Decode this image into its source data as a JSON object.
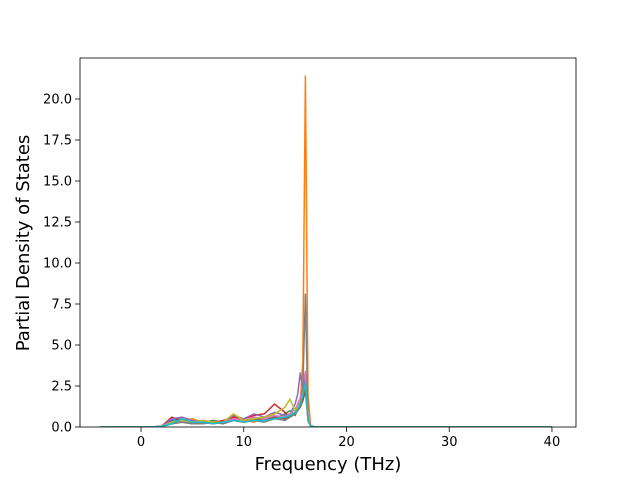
{
  "chart_data": {
    "type": "line",
    "xlabel": "Frequency (THz)",
    "ylabel": "Partial Density of States",
    "x": [
      -4,
      0,
      1,
      2,
      3,
      4,
      5,
      6,
      7,
      8,
      9,
      10,
      11,
      12,
      13,
      14,
      14.5,
      15,
      15.25,
      15.5,
      15.75,
      16,
      16.25,
      16.5,
      17,
      20,
      40
    ],
    "series": [
      {
        "color": "#1f77b4",
        "values": [
          0,
          0,
          0,
          0.05,
          0.4,
          0.5,
          0.3,
          0.2,
          0.3,
          0.2,
          0.4,
          0.3,
          0.5,
          0.4,
          0.6,
          0.5,
          0.7,
          0.9,
          1.2,
          1.6,
          2.0,
          2.4,
          0.6,
          0.05,
          0,
          0,
          0
        ]
      },
      {
        "color": "#ff7f0e",
        "values": [
          0,
          0,
          0,
          0.05,
          0.3,
          0.4,
          0.5,
          0.3,
          0.3,
          0.2,
          0.5,
          0.4,
          0.3,
          0.5,
          0.7,
          0.5,
          0.6,
          0.8,
          1.0,
          1.5,
          4.0,
          21.4,
          2.0,
          0.1,
          0,
          0,
          0
        ]
      },
      {
        "color": "#2ca02c",
        "values": [
          0,
          0,
          0,
          0.03,
          0.3,
          0.3,
          0.2,
          0.3,
          0.4,
          0.3,
          0.5,
          0.3,
          0.4,
          0.6,
          0.5,
          0.8,
          1.0,
          0.7,
          1.1,
          1.3,
          1.8,
          2.5,
          0.5,
          0.05,
          0,
          0,
          0
        ]
      },
      {
        "color": "#d62728",
        "values": [
          0,
          0,
          0,
          0.05,
          0.6,
          0.4,
          0.3,
          0.4,
          0.3,
          0.4,
          0.6,
          0.5,
          0.7,
          0.8,
          1.4,
          0.9,
          0.6,
          0.9,
          1.2,
          1.4,
          1.9,
          2.8,
          0.7,
          0.05,
          0,
          0,
          0
        ]
      },
      {
        "color": "#9467bd",
        "values": [
          0,
          0,
          0,
          0.04,
          0.5,
          0.6,
          0.4,
          0.3,
          0.2,
          0.3,
          0.7,
          0.5,
          0.8,
          0.6,
          0.9,
          0.7,
          0.8,
          1.4,
          2.0,
          3.3,
          2.2,
          3.0,
          0.8,
          0.05,
          0,
          0,
          0
        ]
      },
      {
        "color": "#8c564b",
        "values": [
          0,
          0,
          0,
          0.03,
          0.2,
          0.3,
          0.2,
          0.3,
          0.2,
          0.3,
          0.4,
          0.3,
          0.5,
          0.4,
          0.6,
          0.5,
          0.6,
          0.8,
          1.0,
          1.2,
          1.6,
          2.2,
          0.4,
          0.05,
          0,
          0,
          0
        ]
      },
      {
        "color": "#e377c2",
        "values": [
          0,
          0,
          0,
          0.03,
          0.3,
          0.4,
          0.3,
          0.4,
          0.3,
          0.3,
          0.5,
          0.4,
          0.6,
          0.5,
          0.7,
          0.6,
          0.8,
          1.1,
          1.4,
          1.8,
          2.6,
          3.4,
          0.9,
          0.05,
          0,
          0,
          0
        ]
      },
      {
        "color": "#7f7f7f",
        "values": [
          0,
          0,
          0,
          0.02,
          0.2,
          0.3,
          0.2,
          0.2,
          0.3,
          0.2,
          0.4,
          0.3,
          0.4,
          0.3,
          0.5,
          0.4,
          0.6,
          0.8,
          1.0,
          1.3,
          2.4,
          8.1,
          0.6,
          0.05,
          0,
          0,
          0
        ]
      },
      {
        "color": "#bcbd22",
        "values": [
          0,
          0,
          0,
          0.03,
          0.3,
          0.4,
          0.3,
          0.4,
          0.3,
          0.3,
          0.8,
          0.4,
          0.5,
          0.6,
          0.8,
          1.2,
          1.7,
          1.0,
          1.2,
          1.5,
          2.0,
          2.6,
          0.6,
          0.05,
          0,
          0,
          0
        ]
      },
      {
        "color": "#17becf",
        "values": [
          0,
          0,
          0,
          0.03,
          0.2,
          0.5,
          0.3,
          0.3,
          0.2,
          0.3,
          0.4,
          0.3,
          0.4,
          0.4,
          0.5,
          0.6,
          0.7,
          0.9,
          1.1,
          1.4,
          1.9,
          2.7,
          0.5,
          0.05,
          0,
          0,
          0
        ]
      }
    ],
    "xlim": [
      -5.94,
      42.34
    ],
    "ylim": [
      0,
      22.5
    ],
    "xticks": [
      0,
      10,
      20,
      30,
      40
    ],
    "yticks": [
      {
        "value": 0,
        "label": "0.0"
      },
      2.5,
      {
        "value": 5,
        "label": "5.0"
      },
      7.5,
      {
        "value": 10,
        "label": "10.0"
      },
      12.5,
      {
        "value": 15,
        "label": "15.0"
      },
      17.5,
      {
        "value": 20,
        "label": "20.0"
      }
    ]
  }
}
